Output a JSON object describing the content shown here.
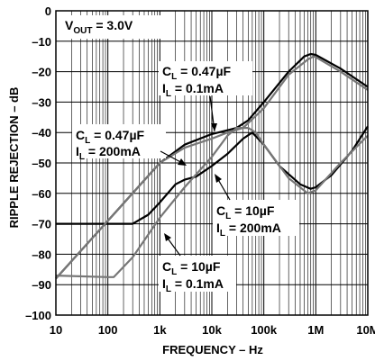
{
  "chart_data": {
    "type": "line",
    "xlabel": "FREQUENCY – Hz",
    "ylabel": "RIPPLE REJECTION – dB",
    "x_scale": "log",
    "xlim": [
      10,
      10000000
    ],
    "ylim": [
      -100,
      0
    ],
    "grid": true,
    "x_ticks": [
      {
        "value": 10,
        "label": "10"
      },
      {
        "value": 100,
        "label": "100"
      },
      {
        "value": 1000,
        "label": "1k"
      },
      {
        "value": 10000,
        "label": "10k"
      },
      {
        "value": 100000,
        "label": "100k"
      },
      {
        "value": 1000000,
        "label": "1M"
      },
      {
        "value": 10000000,
        "label": "10M"
      }
    ],
    "y_ticks": [
      {
        "value": 0,
        "label": "0"
      },
      {
        "value": -10,
        "label": "–10"
      },
      {
        "value": -20,
        "label": "–20"
      },
      {
        "value": -30,
        "label": "–30"
      },
      {
        "value": -40,
        "label": "–40"
      },
      {
        "value": -50,
        "label": "–50"
      },
      {
        "value": -60,
        "label": "–60"
      },
      {
        "value": -70,
        "label": "–70"
      },
      {
        "value": -80,
        "label": "–80"
      },
      {
        "value": -90,
        "label": "–90"
      },
      {
        "value": -100,
        "label": "–100"
      }
    ],
    "annotations": {
      "vout": {
        "main": "V",
        "sub": "OUT",
        "rest": " = 3.0V"
      },
      "a1": {
        "c": "C",
        "c_sub": "L",
        "c_val": " = 0.47µF",
        "i": "I",
        "i_sub": "L",
        "i_val": " = 0.1mA"
      },
      "a2": {
        "c": "C",
        "c_sub": "L",
        "c_val": " = 0.47µF",
        "i": "I",
        "i_sub": "L",
        "i_val": " = 200mA"
      },
      "a3": {
        "c": "C",
        "c_sub": "L",
        "c_val": " = 10µF",
        "i": "I",
        "i_sub": "L",
        "i_val": " = 200mA"
      },
      "a4": {
        "c": "C",
        "c_sub": "L",
        "c_val": " = 10µF",
        "i": "I",
        "i_sub": "L",
        "i_val": " = 0.1mA"
      }
    },
    "series": [
      {
        "color": "#000000",
        "points": [
          [
            10,
            -88
          ],
          [
            100,
            -69
          ],
          [
            1000,
            -50
          ],
          [
            3000,
            -44
          ],
          [
            10000,
            -40.5
          ],
          [
            30000,
            -38.5
          ],
          [
            50000,
            -36
          ],
          [
            100000,
            -30
          ],
          [
            300000,
            -20
          ],
          [
            600000,
            -15
          ],
          [
            800000,
            -14.2
          ],
          [
            1000000,
            -14.5
          ],
          [
            3000000,
            -19
          ],
          [
            10000000,
            -25
          ]
        ]
      },
      {
        "color": "#000000",
        "points": [
          [
            10,
            -70
          ],
          [
            200,
            -70
          ],
          [
            300,
            -70
          ],
          [
            600,
            -67
          ],
          [
            1000,
            -63
          ],
          [
            2000,
            -57
          ],
          [
            3000,
            -55.5
          ],
          [
            5000,
            -54.5
          ],
          [
            10000,
            -51
          ],
          [
            20000,
            -47
          ],
          [
            40000,
            -42
          ],
          [
            60000,
            -40
          ],
          [
            100000,
            -44
          ],
          [
            200000,
            -51
          ],
          [
            500000,
            -57
          ],
          [
            800000,
            -58.5
          ],
          [
            1000000,
            -58
          ],
          [
            2000000,
            -54
          ],
          [
            5000000,
            -46
          ],
          [
            10000000,
            -38
          ]
        ]
      },
      {
        "color": "#777777",
        "points": [
          [
            10,
            -87
          ],
          [
            100,
            -87.5
          ],
          [
            130,
            -87.5
          ],
          [
            300,
            -81
          ],
          [
            1000,
            -68
          ],
          [
            3000,
            -58
          ],
          [
            10000,
            -48
          ],
          [
            20000,
            -41
          ],
          [
            30000,
            -38.5
          ],
          [
            50000,
            -38.5
          ],
          [
            70000,
            -40
          ],
          [
            100000,
            -44
          ],
          [
            300000,
            -55
          ],
          [
            700000,
            -60
          ],
          [
            1000000,
            -59
          ],
          [
            3000000,
            -50
          ],
          [
            10000000,
            -41
          ]
        ]
      },
      {
        "color": "#777777",
        "points": [
          [
            10,
            -88
          ],
          [
            100,
            -69
          ],
          [
            1000,
            -50
          ],
          [
            3000,
            -45
          ],
          [
            10000,
            -42
          ],
          [
            20000,
            -40
          ],
          [
            40000,
            -38.5
          ],
          [
            100000,
            -32
          ],
          [
            300000,
            -21
          ],
          [
            700000,
            -16
          ],
          [
            900000,
            -15
          ],
          [
            1000000,
            -15.2
          ],
          [
            3000000,
            -20
          ],
          [
            10000000,
            -26
          ]
        ]
      }
    ]
  }
}
